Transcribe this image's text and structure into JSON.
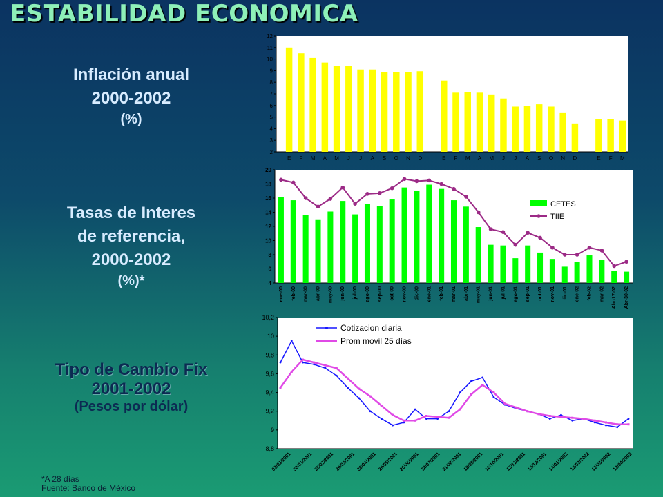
{
  "title": "ESTABILIDAD ECONOMICA",
  "labels": {
    "inflation": {
      "line1": "Inflación anual",
      "line2": "2000-2002",
      "unit": "(%)"
    },
    "rates": {
      "line1": "Tasas de Interes",
      "line2": "de referencia,",
      "line3": "2000-2002",
      "unit": "(%)*"
    },
    "fx": {
      "line1": "Tipo de Cambio Fix",
      "line2": "2001-2002",
      "unit": "(Pesos por dólar)"
    }
  },
  "footnote": {
    "line1": "*A 28 días",
    "line2": "Fuente: Banco de México"
  },
  "colors": {
    "yellow": "#ffff00",
    "green": "#00ff00",
    "purple": "#9c2a86",
    "blue": "#1616ff",
    "magenta": "#e04ae6"
  },
  "chart_data": [
    {
      "type": "bar",
      "title": "",
      "categories": [
        "E",
        "F",
        "M",
        "A",
        "M",
        "J",
        "J",
        "A",
        "S",
        "O",
        "N",
        "D",
        "",
        "E",
        "F",
        "M",
        "A",
        "M",
        "J",
        "J",
        "A",
        "S",
        "O",
        "N",
        "D",
        "",
        "E",
        "F",
        "M"
      ],
      "values": [
        11.0,
        10.5,
        10.1,
        9.7,
        9.4,
        9.4,
        9.1,
        9.1,
        8.85,
        8.9,
        8.9,
        8.95,
        null,
        8.15,
        7.1,
        7.15,
        7.1,
        6.95,
        6.6,
        5.9,
        5.95,
        6.1,
        5.9,
        5.4,
        4.45,
        null,
        4.8,
        4.8,
        4.7
      ],
      "ylim": [
        2,
        12
      ],
      "yticks": [
        2,
        3,
        4,
        5,
        6,
        7,
        8,
        9,
        10,
        11,
        12
      ]
    },
    {
      "type": "bar",
      "title": "",
      "categories": [
        "ene-00",
        "feb-00",
        "mar-00",
        "abr-00",
        "may-00",
        "jun-00",
        "jul-00",
        "ago-00",
        "sep-00",
        "oct-00",
        "nov-00",
        "dic-00",
        "ene-01",
        "feb-01",
        "mar-01",
        "abr-01",
        "may-01",
        "jun-01",
        "jul-01",
        "ago-01",
        "sep-01",
        "oct-01",
        "nov-01",
        "dic-01",
        "ene-02",
        "feb-02",
        "mar-02",
        "Abr-17-02",
        "Abr-30-02"
      ],
      "series": [
        {
          "name": "CETES",
          "values": [
            16.1,
            15.7,
            13.6,
            13.0,
            14.1,
            15.6,
            13.7,
            15.2,
            14.9,
            15.8,
            17.5,
            17.0,
            17.9,
            17.3,
            15.7,
            14.8,
            11.9,
            9.4,
            9.3,
            7.5,
            9.3,
            8.3,
            7.4,
            6.3,
            7.0,
            7.9,
            7.3,
            5.7,
            5.6
          ]
        },
        {
          "name": "TIIE",
          "values": [
            18.6,
            18.2,
            16.0,
            14.8,
            15.9,
            17.5,
            15.2,
            16.6,
            16.7,
            17.4,
            18.7,
            18.4,
            18.5,
            18.0,
            17.3,
            16.2,
            14.0,
            11.6,
            11.2,
            9.4,
            11.1,
            10.4,
            9.0,
            8.0,
            8.0,
            9.0,
            8.6,
            6.4,
            7.0
          ]
        }
      ],
      "ylim": [
        4,
        20
      ],
      "yticks": [
        4,
        6,
        8,
        10,
        12,
        14,
        16,
        18,
        20
      ],
      "legend": "right"
    },
    {
      "type": "line",
      "title": "",
      "x_labels": [
        "02/01/2001",
        "30/01/2001",
        "28/02/2001",
        "29/03/2001",
        "30/04/2001",
        "29/05/2001",
        "26/06/2001",
        "24/07/2001",
        "21/08/2001",
        "18/09/2001",
        "16/10/2001",
        "13/11/2001",
        "13/12/2001",
        "14/01/2002",
        "12/02/2002",
        "12/03/2002",
        "12/04/2002"
      ],
      "series": [
        {
          "name": "Cotizacion diaria",
          "values": [
            9.72,
            9.95,
            9.72,
            9.7,
            9.66,
            9.58,
            9.45,
            9.34,
            9.2,
            9.12,
            9.05,
            9.08,
            9.22,
            9.12,
            9.12,
            9.2,
            9.4,
            9.52,
            9.56,
            9.35,
            9.27,
            9.23,
            9.2,
            9.17,
            9.12,
            9.16,
            9.1,
            9.12,
            9.08,
            9.05,
            9.03,
            9.12
          ]
        },
        {
          "name": "Prom movil 25 días",
          "values": [
            9.45,
            9.62,
            9.75,
            9.72,
            9.69,
            9.66,
            9.55,
            9.44,
            9.36,
            9.26,
            9.16,
            9.1,
            9.1,
            9.15,
            9.14,
            9.13,
            9.22,
            9.38,
            9.48,
            9.4,
            9.28,
            9.24,
            9.2,
            9.17,
            9.15,
            9.14,
            9.13,
            9.12,
            9.1,
            9.08,
            9.06,
            9.06
          ]
        }
      ],
      "ylim": [
        8.8,
        10.2
      ],
      "yticks": [
        "8,8",
        "9",
        "9,2",
        "9,4",
        "9,6",
        "9,8",
        "10",
        "10,2"
      ],
      "legend": "top"
    }
  ]
}
